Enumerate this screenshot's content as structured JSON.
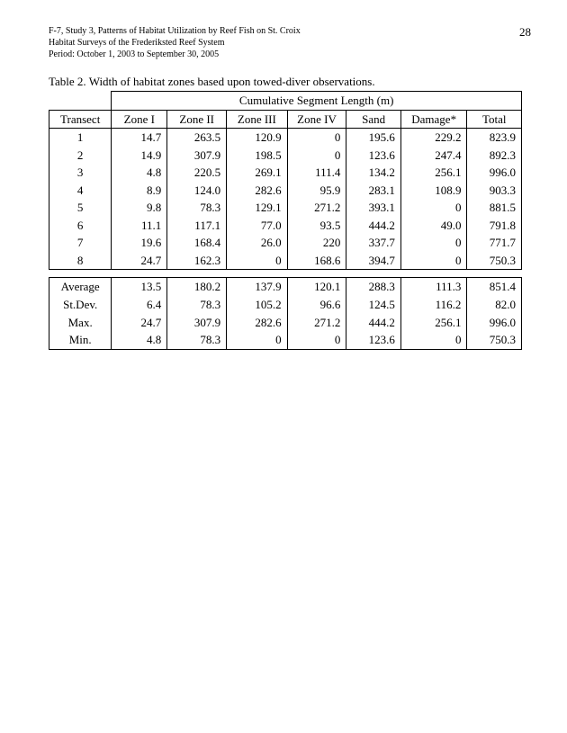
{
  "page_number": "28",
  "header": {
    "line1": "F-7, Study 3, Patterns of Habitat Utilization by Reef Fish on St. Croix",
    "line2": "Habitat Surveys of the Frederiksted Reef System",
    "line3": "Period: October 1, 2003 to September 30, 2005"
  },
  "caption": "Table 2.  Width of habitat zones based upon towed-diver observations.",
  "table": {
    "super_header": "Cumulative Segment Length (m)",
    "columns": [
      "Transect",
      "Zone I",
      "Zone II",
      "Zone III",
      "Zone IV",
      "Sand",
      "Damage*",
      "Total"
    ],
    "rows": [
      {
        "t": "1",
        "z1": "14.7",
        "z2": "263.5",
        "z3": "120.9",
        "z4": "0",
        "sand": "195.6",
        "dmg": "229.2",
        "tot": "823.9"
      },
      {
        "t": "2",
        "z1": "14.9",
        "z2": "307.9",
        "z3": "198.5",
        "z4": "0",
        "sand": "123.6",
        "dmg": "247.4",
        "tot": "892.3"
      },
      {
        "t": "3",
        "z1": "4.8",
        "z2": "220.5",
        "z3": "269.1",
        "z4": "111.4",
        "sand": "134.2",
        "dmg": "256.1",
        "tot": "996.0"
      },
      {
        "t": "4",
        "z1": "8.9",
        "z2": "124.0",
        "z3": "282.6",
        "z4": "95.9",
        "sand": "283.1",
        "dmg": "108.9",
        "tot": "903.3"
      },
      {
        "t": "5",
        "z1": "9.8",
        "z2": "78.3",
        "z3": "129.1",
        "z4": "271.2",
        "sand": "393.1",
        "dmg": "0",
        "tot": "881.5"
      },
      {
        "t": "6",
        "z1": "11.1",
        "z2": "117.1",
        "z3": "77.0",
        "z4": "93.5",
        "sand": "444.2",
        "dmg": "49.0",
        "tot": "791.8"
      },
      {
        "t": "7",
        "z1": "19.6",
        "z2": "168.4",
        "z3": "26.0",
        "z4": "220",
        "sand": "337.7",
        "dmg": "0",
        "tot": "771.7"
      },
      {
        "t": "8",
        "z1": "24.7",
        "z2": "162.3",
        "z3": "0",
        "z4": "168.6",
        "sand": "394.7",
        "dmg": "0",
        "tot": "750.3"
      }
    ],
    "stats": [
      {
        "label": "Average",
        "z1": "13.5",
        "z2": "180.2",
        "z3": "137.9",
        "z4": "120.1",
        "sand": "288.3",
        "dmg": "111.3",
        "tot": "851.4"
      },
      {
        "label": "St.Dev.",
        "z1": "6.4",
        "z2": "78.3",
        "z3": "105.2",
        "z4": "96.6",
        "sand": "124.5",
        "dmg": "116.2",
        "tot": "82.0"
      },
      {
        "label": "Max.",
        "z1": "24.7",
        "z2": "307.9",
        "z3": "282.6",
        "z4": "271.2",
        "sand": "444.2",
        "dmg": "256.1",
        "tot": "996.0"
      },
      {
        "label": "Min.",
        "z1": "4.8",
        "z2": "78.3",
        "z3": "0",
        "z4": "0",
        "sand": "123.6",
        "dmg": "0",
        "tot": "750.3"
      }
    ]
  }
}
